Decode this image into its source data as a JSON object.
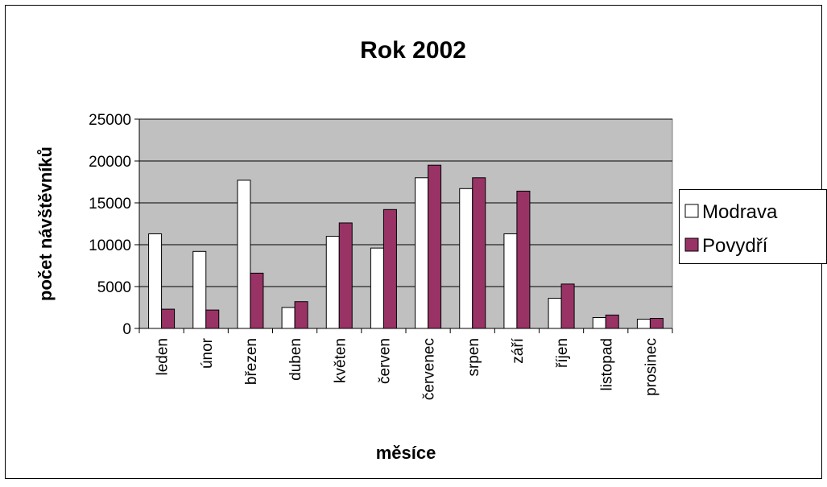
{
  "chart_data": {
    "type": "bar",
    "title": "Rok 2002",
    "xlabel": "měsíce",
    "ylabel": "počet návštěvníků",
    "categories": [
      "leden",
      "únor",
      "březen",
      "duben",
      "květen",
      "červen",
      "červenec",
      "srpen",
      "září",
      "říjen",
      "listopad",
      "prosinec"
    ],
    "series": [
      {
        "name": "Modrava",
        "color": "#ffffff",
        "values": [
          11300,
          9200,
          17700,
          2500,
          11000,
          9600,
          18000,
          16700,
          11300,
          3600,
          1300,
          1100
        ]
      },
      {
        "name": "Povydří",
        "color": "#993366",
        "values": [
          2300,
          2200,
          6600,
          3200,
          12600,
          14200,
          19500,
          18000,
          16400,
          5300,
          1600,
          1200
        ]
      }
    ],
    "ylim": [
      0,
      25000
    ],
    "yticks": [
      "0",
      "5000",
      "10000",
      "15000",
      "20000",
      "25000"
    ],
    "grid": true,
    "plot_background": "#c0c0c0",
    "legend_position": "right"
  }
}
